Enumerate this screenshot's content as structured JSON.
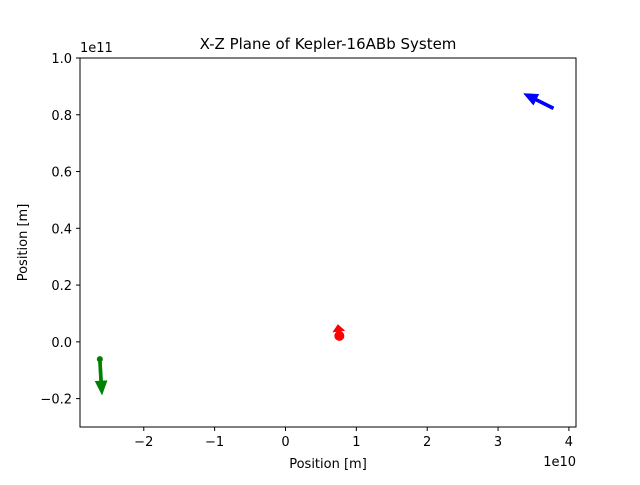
{
  "chart_data": {
    "type": "scatter",
    "title": "X-Z Plane of Kepler-16ABb System",
    "xlabel": "Position [m]",
    "ylabel": "Position [m]",
    "x_offset_text": "1e10",
    "y_offset_text": "1e11",
    "xlim": [
      -2.9,
      4.1
    ],
    "ylim": [
      -0.3,
      1.0
    ],
    "x_unit_scale": 10000000000.0,
    "y_unit_scale": 100000000000.0,
    "x_ticks": [
      {
        "value": -2,
        "label": "−2"
      },
      {
        "value": -1,
        "label": "−1"
      },
      {
        "value": 0,
        "label": "0"
      },
      {
        "value": 1,
        "label": "1"
      },
      {
        "value": 2,
        "label": "2"
      },
      {
        "value": 3,
        "label": "3"
      },
      {
        "value": 4,
        "label": "4"
      }
    ],
    "y_ticks": [
      {
        "value": -0.2,
        "label": "−0.2"
      },
      {
        "value": 0.0,
        "label": "0.0"
      },
      {
        "value": 0.2,
        "label": "0.2"
      },
      {
        "value": 0.4,
        "label": "0.4"
      },
      {
        "value": 0.6,
        "label": "0.6"
      },
      {
        "value": 0.8,
        "label": "0.8"
      },
      {
        "value": 1.0,
        "label": "1.0"
      }
    ],
    "grid": false,
    "series": [
      {
        "color": "#0000ff",
        "points": [],
        "arrow": {
          "x": 3.78,
          "y": 0.823,
          "dx": -0.42,
          "dy": 0.052
        }
      },
      {
        "color": "#008000",
        "points": [
          {
            "x": -2.62,
            "y": -0.061
          }
        ],
        "arrow": {
          "x": -2.62,
          "y": -0.061,
          "dx": 0.03,
          "dy": -0.126
        }
      },
      {
        "color": "#ff0000",
        "points": [
          {
            "x": 0.76,
            "y": 0.021
          }
        ],
        "arrow": {
          "x": 0.76,
          "y": 0.021,
          "dx": -0.02,
          "dy": 0.04
        }
      }
    ]
  }
}
